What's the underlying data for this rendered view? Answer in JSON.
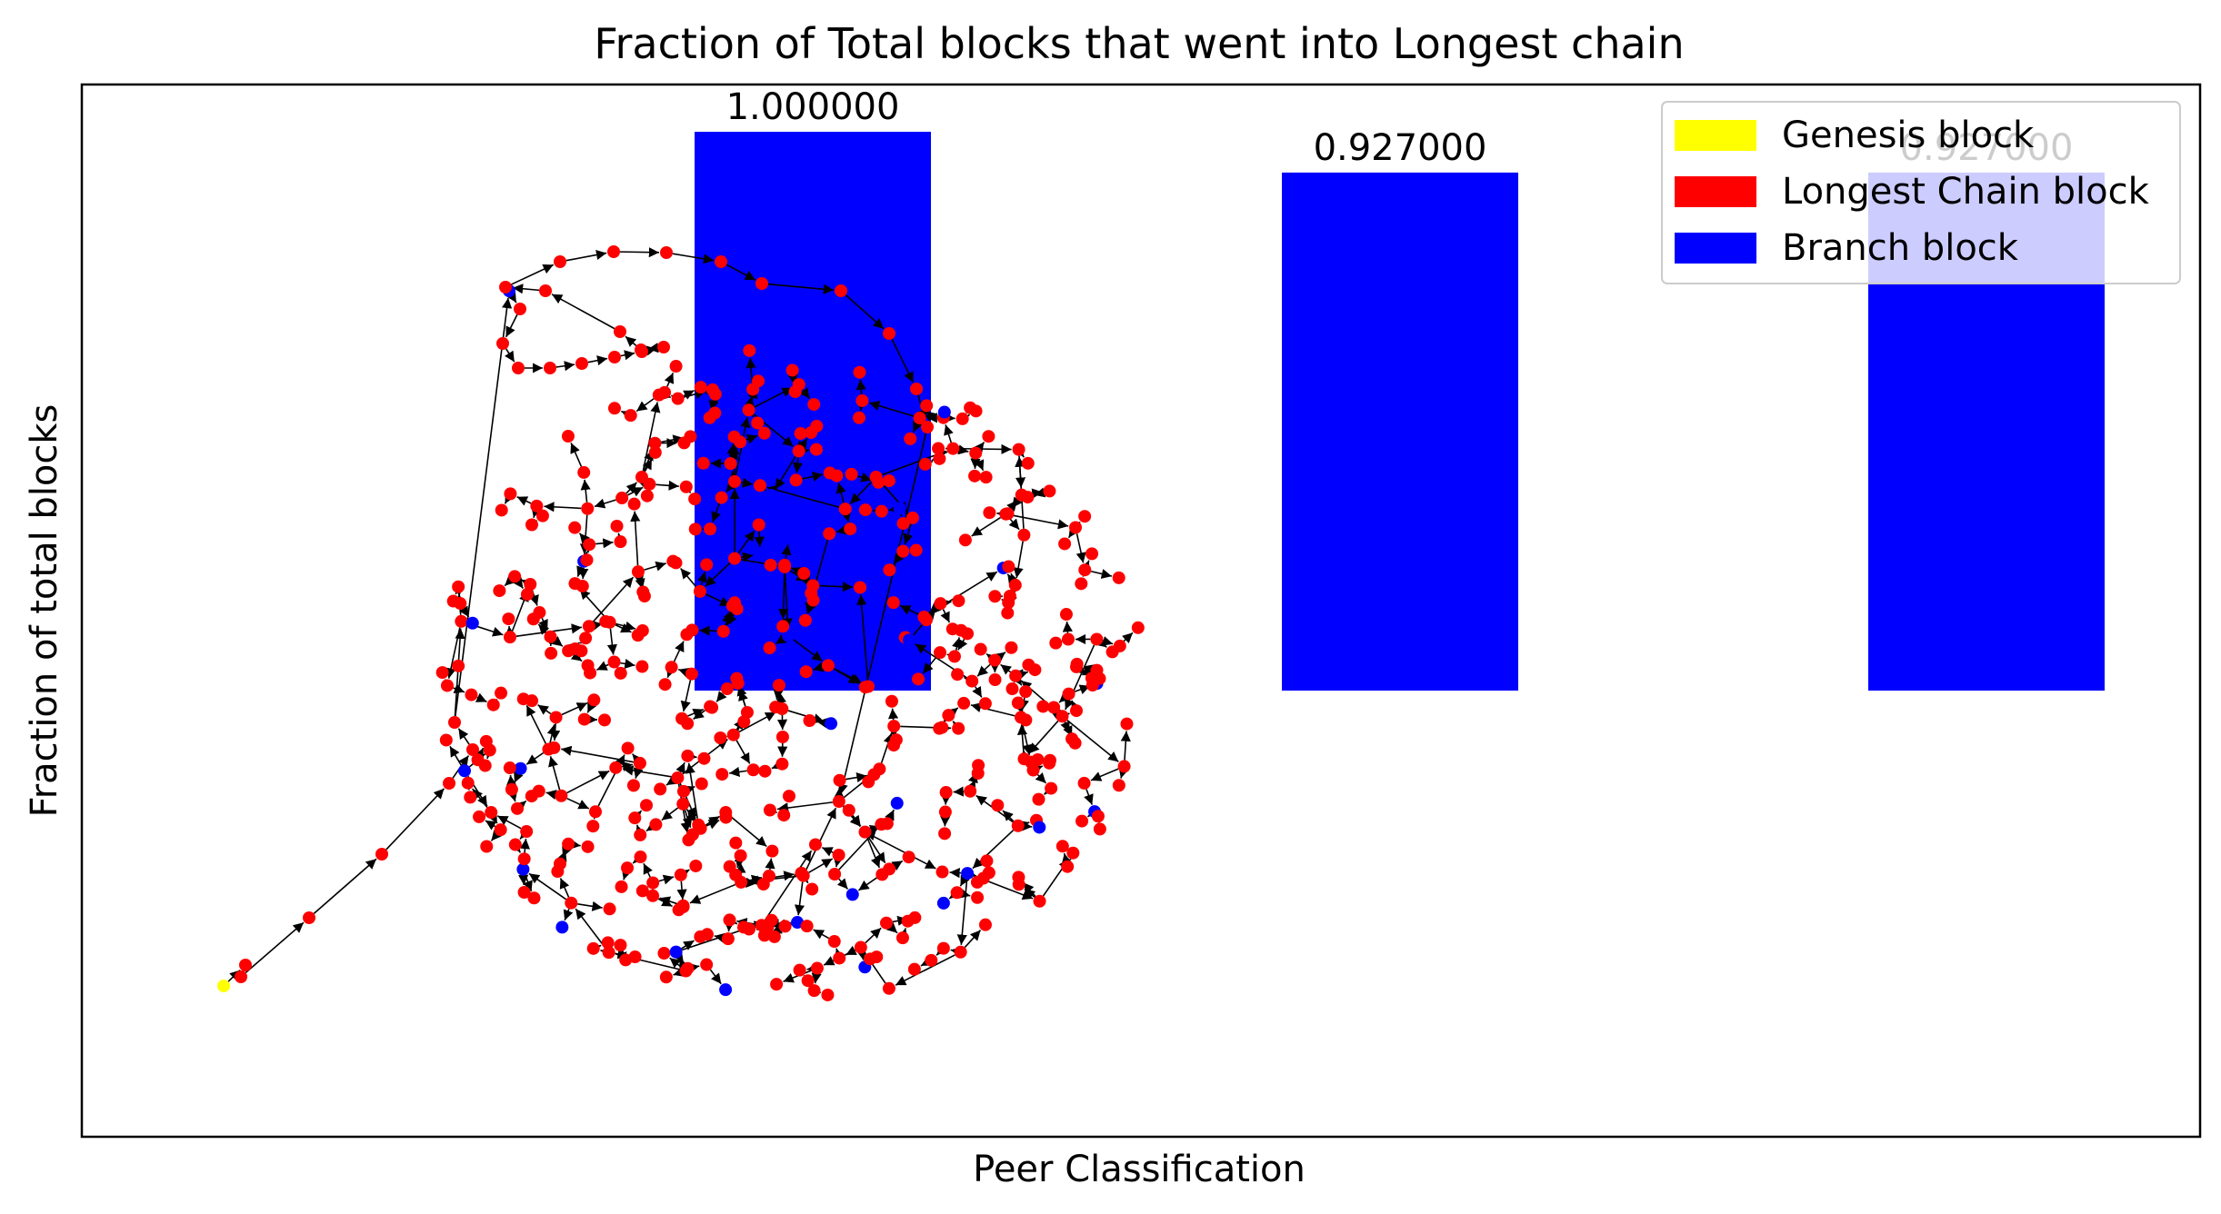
{
  "chart_data": {
    "type": "bar",
    "title": "Fraction of Total blocks that went into Longest chain",
    "xlabel": "Peer Classification",
    "ylabel": "Fraction of total blocks",
    "categories": [
      "",
      "",
      ""
    ],
    "values": [
      1.0,
      0.927,
      0.927
    ],
    "value_labels": [
      "1.000000",
      "0.927000",
      "0.927000"
    ],
    "bar_color": "#0000ff",
    "ylim": [
      0,
      1.05
    ],
    "xticks_visible": false,
    "yticks_visible": false,
    "grid": false,
    "legend": {
      "placement": "top-right",
      "entries": [
        {
          "label": "Genesis block",
          "color": "#ffff00"
        },
        {
          "label": "Longest Chain block",
          "color": "#ff0000"
        },
        {
          "label": "Branch block",
          "color": "#0000ff"
        }
      ]
    },
    "overlay": {
      "type": "directed-graph",
      "node_colors": {
        "genesis": "#ffff00",
        "longest_chain": "#ff0000",
        "branch": "#0000ff"
      },
      "edge_color": "#000000"
    }
  }
}
